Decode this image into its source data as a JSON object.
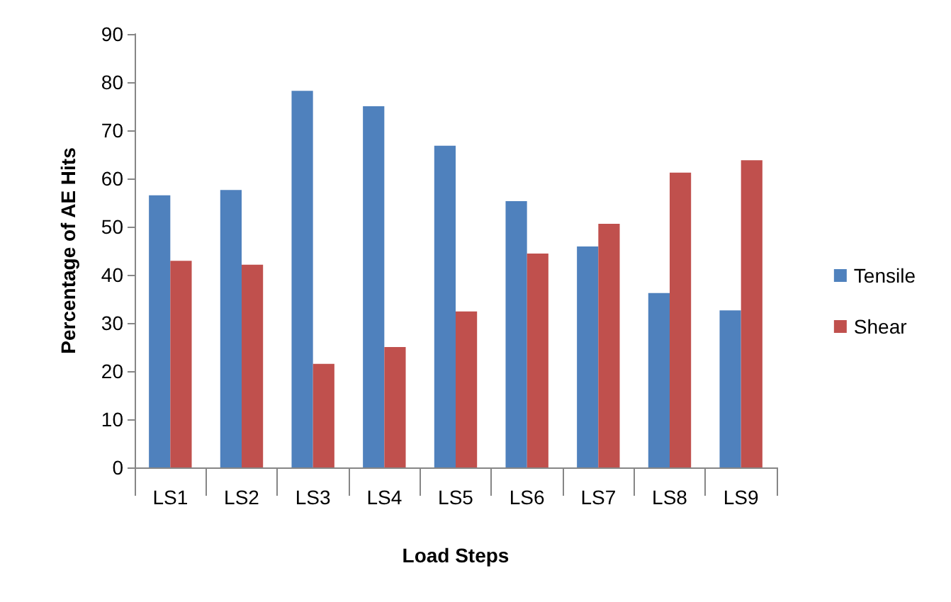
{
  "chart_data": {
    "type": "bar",
    "xlabel": "Load Steps",
    "ylabel": "Percentage of AE Hits",
    "categories": [
      "LS1",
      "LS2",
      "LS3",
      "LS4",
      "LS5",
      "LS6",
      "LS7",
      "LS8",
      "LS9"
    ],
    "series": [
      {
        "name": "Tensile",
        "color": "#4f81bd",
        "values": [
          56.5,
          57.6,
          78.2,
          75,
          66.8,
          55.3,
          45.9,
          36.2,
          32.6
        ]
      },
      {
        "name": "Shear",
        "color": "#c0504d",
        "values": [
          42.9,
          42.1,
          21.5,
          25,
          32.4,
          44.4,
          50.6,
          61.2,
          63.8
        ]
      }
    ],
    "ylim": [
      0,
      90
    ],
    "yticks": [
      0,
      10,
      20,
      30,
      40,
      50,
      60,
      70,
      80,
      90
    ],
    "grid": false,
    "legend": "right"
  }
}
